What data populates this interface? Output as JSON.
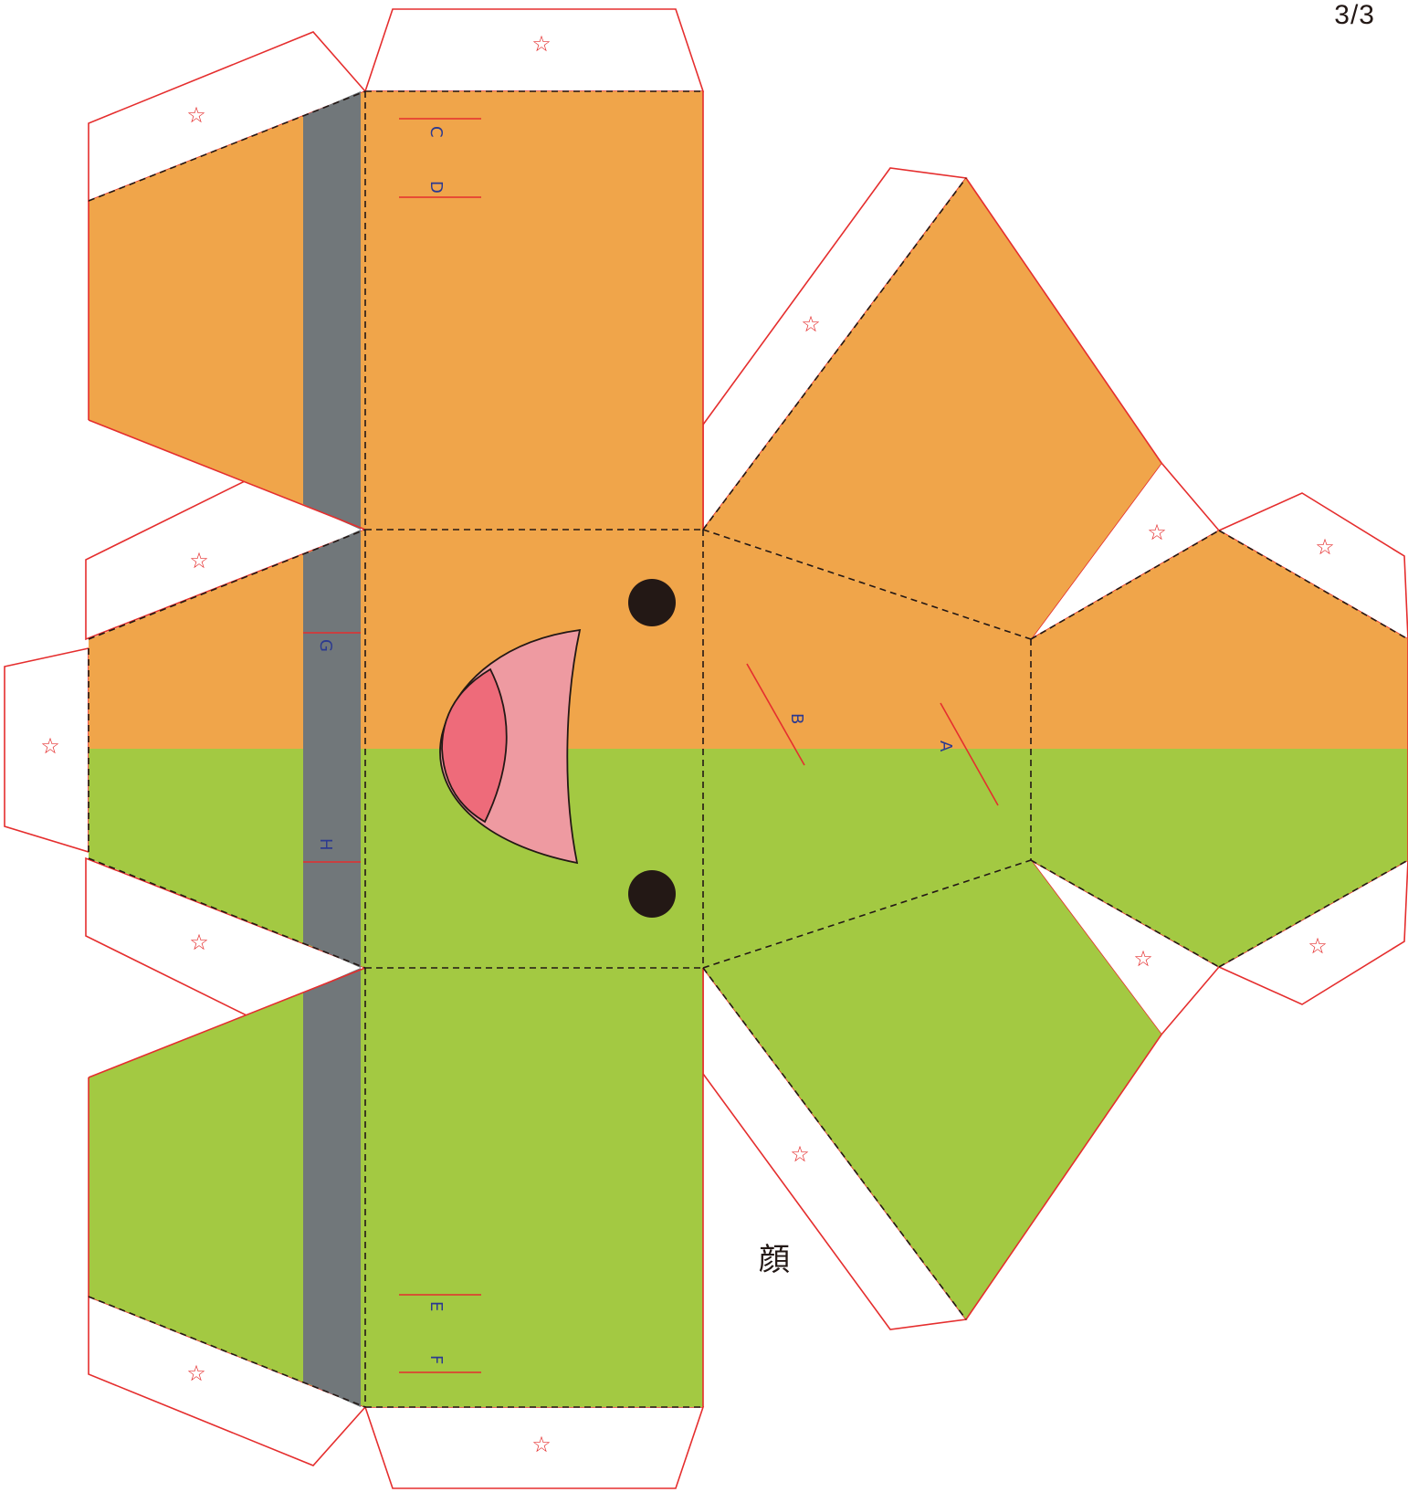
{
  "page": {
    "number": "3/3"
  },
  "title": "顔",
  "colors": {
    "orange": "#f0a54a",
    "green": "#a3c942",
    "gray": "#71777a",
    "cut_line": "#e52e2e",
    "fold_line": "#231815",
    "label": "#2b3990",
    "glue_mark": "#e52e2e",
    "mouth_outer": "#ee9aa1",
    "mouth_inner": "#ee6b7a",
    "eye": "#231815"
  },
  "glue_tab_mark": "☆",
  "labels": {
    "a": "A",
    "b": "B",
    "c": "C",
    "d": "D",
    "e": "E",
    "f": "F",
    "g": "G",
    "h": "H"
  },
  "icons": [
    "star-glue-icon",
    "eye-icon",
    "mouth-icon"
  ]
}
